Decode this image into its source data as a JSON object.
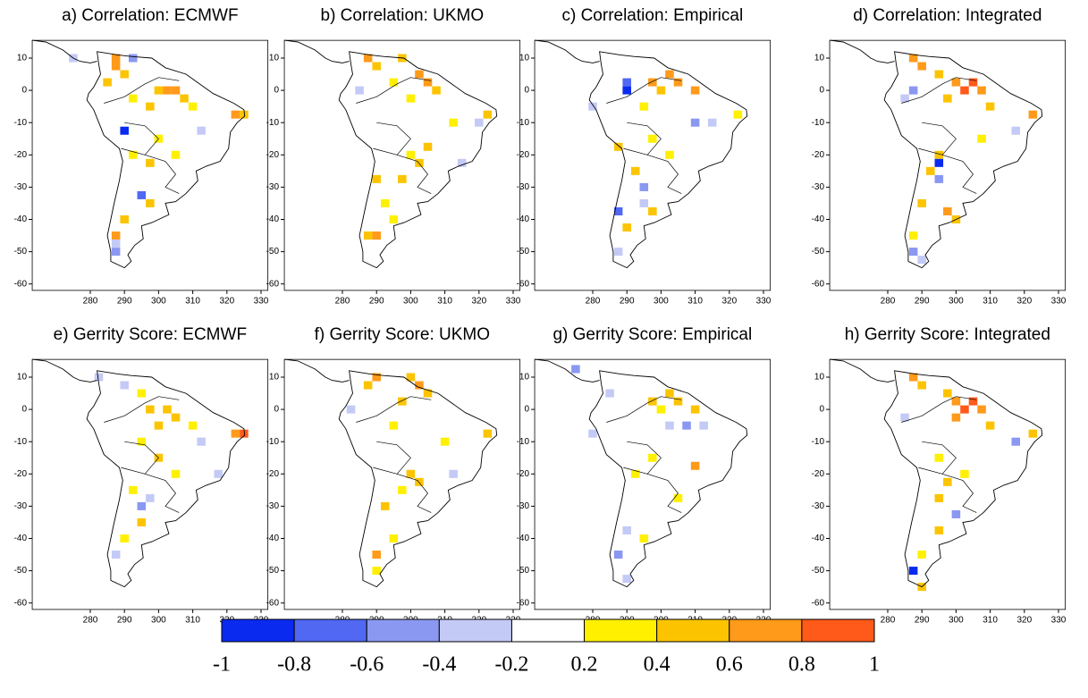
{
  "chart_data": {
    "type": "map",
    "xlim": [
      263,
      332
    ],
    "ylim": [
      -62,
      15.5
    ],
    "xticks": [
      280,
      290,
      300,
      310,
      320,
      330
    ],
    "yticks": [
      10,
      0,
      -10,
      -20,
      -30,
      -40,
      -50,
      -60
    ],
    "colorbar": {
      "levels": [
        -1,
        -0.8,
        -0.6,
        -0.4,
        -0.2,
        0.2,
        0.4,
        0.6,
        0.8,
        1
      ],
      "colors": [
        "#0a2af0",
        "#5068f2",
        "#8a98f2",
        "#c4caf6",
        "#ffffff",
        "#fff000",
        "#fcc400",
        "#ff9a1a",
        "#ff5a1a"
      ]
    },
    "panels": [
      {
        "title": "a) Correlation: ECMWF",
        "cells": [
          [
            287.5,
            10,
            0.7
          ],
          [
            287.5,
            7.5,
            0.7
          ],
          [
            290,
            5,
            0.5
          ],
          [
            285,
            2.5,
            0.5
          ],
          [
            300,
            0,
            0.5
          ],
          [
            302.5,
            0,
            0.7
          ],
          [
            305,
            0,
            0.7
          ],
          [
            307.5,
            -2.5,
            0.5
          ],
          [
            297.5,
            -5,
            0.5
          ],
          [
            292.5,
            -2.5,
            0.3
          ],
          [
            310,
            -5,
            0.3
          ],
          [
            322.5,
            -7.5,
            0.7
          ],
          [
            325,
            -7.5,
            0.5
          ],
          [
            290,
            -12.5,
            -0.9
          ],
          [
            292.5,
            -20,
            0.3
          ],
          [
            297.5,
            -22.5,
            0.5
          ],
          [
            300,
            -15,
            0.3
          ],
          [
            305,
            -20,
            0.3
          ],
          [
            295,
            -32.5,
            -0.7
          ],
          [
            297.5,
            -35,
            0.5
          ],
          [
            290,
            -40,
            0.5
          ],
          [
            287.5,
            -45,
            0.7
          ],
          [
            287.5,
            -50,
            -0.5
          ],
          [
            287.5,
            -47.5,
            -0.3
          ],
          [
            312.5,
            -12.5,
            -0.3
          ],
          [
            292.5,
            10,
            -0.5
          ],
          [
            275,
            10,
            -0.3
          ]
        ]
      },
      {
        "title": "b) Correlation: UKMO",
        "cells": [
          [
            287.5,
            10,
            0.7
          ],
          [
            290,
            7.5,
            0.5
          ],
          [
            297.5,
            10,
            0.5
          ],
          [
            302.5,
            5,
            0.7
          ],
          [
            305,
            2.5,
            0.7
          ],
          [
            307.5,
            0,
            0.5
          ],
          [
            295,
            2.5,
            0.3
          ],
          [
            300,
            -2.5,
            0.3
          ],
          [
            285,
            0,
            -0.3
          ],
          [
            300,
            -20,
            0.3
          ],
          [
            302.5,
            -22.5,
            0.5
          ],
          [
            297.5,
            -27.5,
            0.5
          ],
          [
            290,
            -27.5,
            0.5
          ],
          [
            292.5,
            -35,
            0.3
          ],
          [
            295,
            -40,
            0.3
          ],
          [
            290,
            -45,
            0.7
          ],
          [
            287.5,
            -45,
            0.5
          ],
          [
            322.5,
            -7.5,
            0.5
          ],
          [
            320,
            -10,
            -0.3
          ],
          [
            312.5,
            -10,
            0.3
          ],
          [
            305,
            -17.5,
            0.5
          ],
          [
            315,
            -22.5,
            -0.3
          ]
        ]
      },
      {
        "title": "c) Correlation: Empirical",
        "cells": [
          [
            290,
            0,
            -0.9
          ],
          [
            290,
            2.5,
            -0.7
          ],
          [
            297.5,
            2.5,
            0.7
          ],
          [
            302.5,
            5,
            0.7
          ],
          [
            305,
            2.5,
            0.7
          ],
          [
            310,
            0,
            0.7
          ],
          [
            300,
            0,
            0.5
          ],
          [
            295,
            -5,
            0.3
          ],
          [
            310,
            -10,
            -0.5
          ],
          [
            315,
            -10,
            -0.3
          ],
          [
            287.5,
            -17.5,
            0.5
          ],
          [
            297.5,
            -15,
            0.3
          ],
          [
            302.5,
            -20,
            0.3
          ],
          [
            292.5,
            -25,
            0.5
          ],
          [
            295,
            -30,
            -0.5
          ],
          [
            295,
            -35,
            -0.3
          ],
          [
            287.5,
            -37.5,
            -0.7
          ],
          [
            297.5,
            -37.5,
            0.5
          ],
          [
            290,
            -42.5,
            0.5
          ],
          [
            287.5,
            -50,
            -0.3
          ],
          [
            322.5,
            -7.5,
            0.3
          ],
          [
            280,
            -5,
            -0.3
          ]
        ]
      },
      {
        "title": "d) Correlation: Integrated",
        "cells": [
          [
            287.5,
            10,
            0.7
          ],
          [
            290,
            7.5,
            0.7
          ],
          [
            295,
            5,
            0.5
          ],
          [
            300,
            2.5,
            0.7
          ],
          [
            302.5,
            0,
            0.9
          ],
          [
            305,
            2.5,
            0.9
          ],
          [
            307.5,
            0,
            0.7
          ],
          [
            297.5,
            -2.5,
            0.5
          ],
          [
            310,
            -5,
            0.5
          ],
          [
            322.5,
            -7.5,
            0.7
          ],
          [
            317.5,
            -12.5,
            -0.3
          ],
          [
            287.5,
            0,
            -0.5
          ],
          [
            285,
            -2.5,
            -0.3
          ],
          [
            295,
            -20,
            0.5
          ],
          [
            292.5,
            -25,
            0.5
          ],
          [
            295,
            -22.5,
            -0.9
          ],
          [
            295,
            -27.5,
            -0.5
          ],
          [
            297.5,
            -37.5,
            0.7
          ],
          [
            300,
            -40,
            0.5
          ],
          [
            290,
            -35,
            0.5
          ],
          [
            287.5,
            -45,
            0.3
          ],
          [
            287.5,
            -50,
            -0.5
          ],
          [
            290,
            -52.5,
            -0.3
          ],
          [
            307.5,
            -15,
            0.3
          ]
        ]
      },
      {
        "title": "e) Gerrity Score: ECMWF",
        "cells": [
          [
            282.5,
            10,
            -0.3
          ],
          [
            290,
            7.5,
            -0.3
          ],
          [
            295,
            5,
            0.3
          ],
          [
            297.5,
            0,
            0.5
          ],
          [
            302.5,
            0,
            0.5
          ],
          [
            300,
            -5,
            0.5
          ],
          [
            305,
            -2.5,
            0.5
          ],
          [
            310,
            -5,
            0.3
          ],
          [
            322.5,
            -7.5,
            0.7
          ],
          [
            325,
            -7.5,
            0.9
          ],
          [
            312.5,
            -10,
            -0.3
          ],
          [
            295,
            -10,
            0.3
          ],
          [
            300,
            -15,
            0.5
          ],
          [
            305,
            -20,
            0.3
          ],
          [
            292.5,
            -25,
            0.3
          ],
          [
            295,
            -30,
            -0.5
          ],
          [
            297.5,
            -27.5,
            -0.3
          ],
          [
            295,
            -35,
            0.5
          ],
          [
            290,
            -40,
            0.3
          ],
          [
            287.5,
            -45,
            -0.3
          ],
          [
            317.5,
            -20,
            -0.3
          ]
        ]
      },
      {
        "title": "f) Gerrity Score: UKMO",
        "cells": [
          [
            290,
            10,
            0.7
          ],
          [
            287.5,
            7.5,
            0.5
          ],
          [
            300,
            10,
            0.5
          ],
          [
            302.5,
            7.5,
            0.7
          ],
          [
            305,
            5,
            0.5
          ],
          [
            297.5,
            2.5,
            0.5
          ],
          [
            295,
            -5,
            0.3
          ],
          [
            310,
            -10,
            0.3
          ],
          [
            300,
            -20,
            0.5
          ],
          [
            302.5,
            -22.5,
            0.5
          ],
          [
            297.5,
            -25,
            0.3
          ],
          [
            292.5,
            -30,
            0.5
          ],
          [
            295,
            -40,
            0.3
          ],
          [
            290,
            -45,
            0.7
          ],
          [
            290,
            -50,
            0.3
          ],
          [
            312.5,
            -20,
            -0.3
          ],
          [
            322.5,
            -7.5,
            0.5
          ],
          [
            282.5,
            0,
            -0.3
          ]
        ]
      },
      {
        "title": "g) Gerrity Score: Empirical",
        "cells": [
          [
            275,
            12.5,
            -0.5
          ],
          [
            285,
            5,
            -0.3
          ],
          [
            297.5,
            2.5,
            0.5
          ],
          [
            302.5,
            5,
            0.5
          ],
          [
            305,
            2.5,
            0.5
          ],
          [
            310,
            0,
            0.5
          ],
          [
            300,
            0,
            0.3
          ],
          [
            302.5,
            -5,
            -0.3
          ],
          [
            307.5,
            -5,
            -0.5
          ],
          [
            312.5,
            -5,
            -0.3
          ],
          [
            310,
            -17.5,
            0.7
          ],
          [
            297.5,
            -15,
            0.3
          ],
          [
            292.5,
            -20,
            0.3
          ],
          [
            305,
            -27.5,
            0.3
          ],
          [
            290,
            -37.5,
            -0.3
          ],
          [
            295,
            -40,
            0.3
          ],
          [
            287.5,
            -45,
            -0.5
          ],
          [
            290,
            -52.5,
            -0.3
          ],
          [
            280,
            -7.5,
            -0.3
          ]
        ]
      },
      {
        "title": "h) Gerrity Score: Integrated",
        "cells": [
          [
            287.5,
            10,
            0.7
          ],
          [
            290,
            7.5,
            0.5
          ],
          [
            297.5,
            5,
            0.5
          ],
          [
            300,
            2.5,
            0.7
          ],
          [
            302.5,
            0,
            0.9
          ],
          [
            305,
            2.5,
            0.9
          ],
          [
            307.5,
            0,
            0.7
          ],
          [
            300,
            -2.5,
            0.7
          ],
          [
            310,
            -5,
            0.5
          ],
          [
            322.5,
            -7.5,
            0.5
          ],
          [
            317.5,
            -10,
            -0.5
          ],
          [
            285,
            -2.5,
            -0.3
          ],
          [
            295,
            -15,
            0.3
          ],
          [
            297.5,
            -22.5,
            0.5
          ],
          [
            302.5,
            -20,
            0.3
          ],
          [
            295,
            -27.5,
            0.5
          ],
          [
            300,
            -32.5,
            -0.5
          ],
          [
            295,
            -37.5,
            0.5
          ],
          [
            290,
            -45,
            0.3
          ],
          [
            287.5,
            -50,
            -0.9
          ],
          [
            290,
            -55,
            0.5
          ]
        ]
      }
    ]
  }
}
